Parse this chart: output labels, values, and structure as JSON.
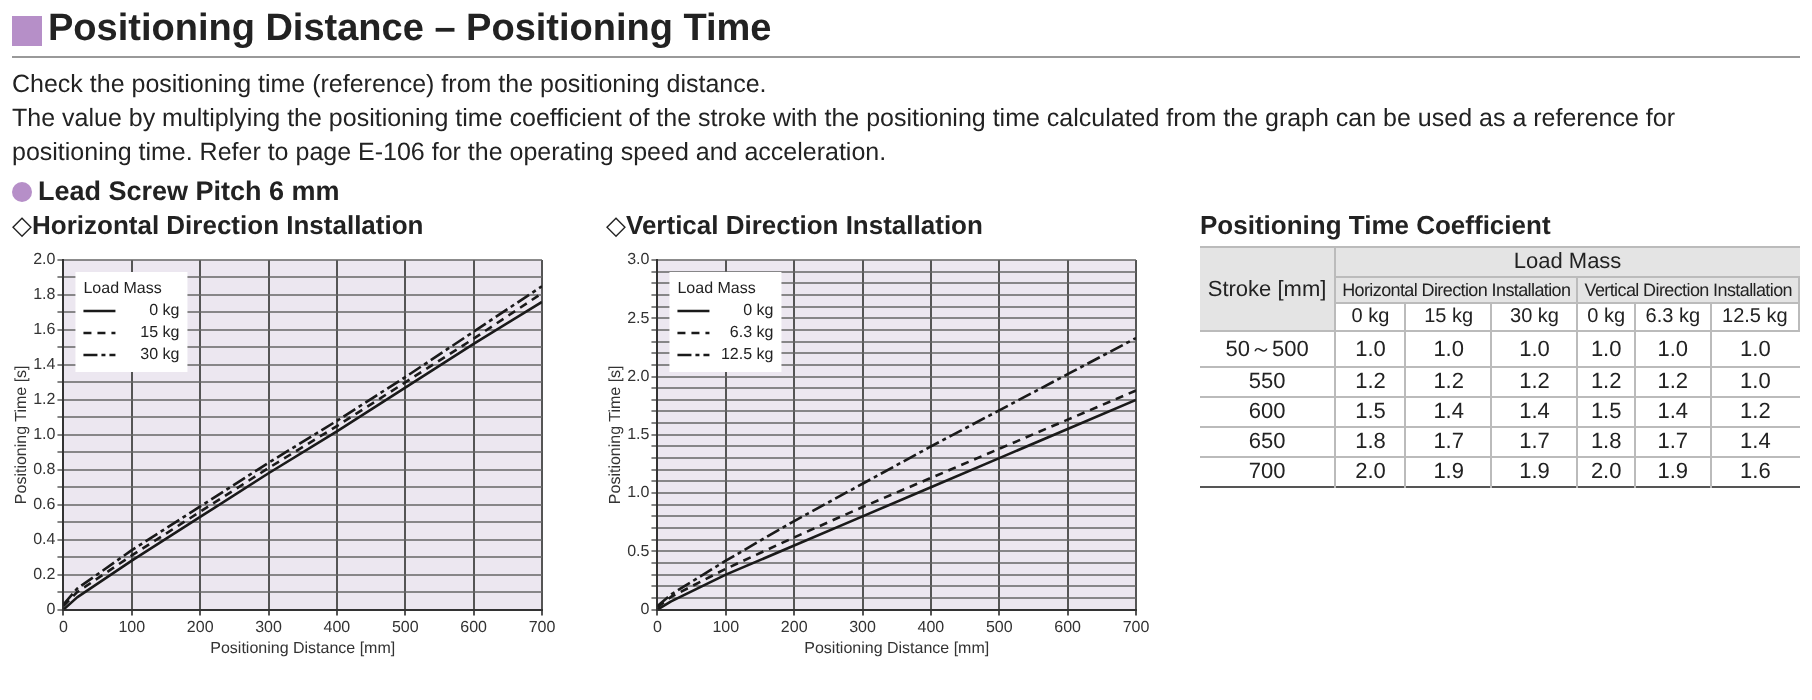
{
  "chart_data": [
    {
      "type": "line",
      "title": "◇Horizontal Direction Installation",
      "annotations": [
        "Positioning Distance – Positioning Time",
        "Check the positioning time (reference) from the positioning distance.",
        "The value by multiplying the positioning time coefficient of the stroke with the positioning time calculated from the graph can be used as a reference for positioning time. Refer to page E-106 for the operating speed and acceleration.",
        "Lead Screw Pitch 6 mm"
      ],
      "xlabel": "Positioning Distance [mm]",
      "ylabel": "Positioning Time [s]",
      "legend_title": "Load Mass",
      "legend": "top left",
      "grid": true,
      "xlim": [
        0,
        700
      ],
      "xticks": [
        0,
        100,
        200,
        300,
        400,
        500,
        600,
        700
      ],
      "ylim": [
        0,
        2.0
      ],
      "yticks": [
        0,
        {
          "value": 0.1,
          "label": null
        },
        0.2,
        {
          "value": 0.3,
          "label": null
        },
        0.4,
        {
          "value": 0.5,
          "label": null
        },
        0.6,
        {
          "value": 0.7,
          "label": null
        },
        0.8,
        {
          "value": 0.9,
          "label": null
        },
        {
          "value": 1.0,
          "label": "1.0"
        },
        {
          "value": 1.1,
          "label": null
        },
        1.2,
        {
          "value": 1.3,
          "label": null
        },
        1.4,
        {
          "value": 1.5,
          "label": null
        },
        1.6,
        {
          "value": 1.7,
          "label": null
        },
        1.8,
        {
          "value": 1.9,
          "label": null
        },
        {
          "value": 2.0,
          "label": "2.0"
        }
      ],
      "series": [
        {
          "name": "0 kg",
          "color": "#1a1a1a",
          "line_style": "solid",
          "x": [
            0,
            20,
            100,
            200,
            300,
            400,
            500,
            600,
            700
          ],
          "values": [
            0,
            0.07,
            0.28,
            0.53,
            0.78,
            1.02,
            1.27,
            1.52,
            1.76
          ]
        },
        {
          "name": "15 kg",
          "color": "#1a1a1a",
          "line_style": "dashed",
          "x": [
            0,
            20,
            100,
            200,
            300,
            400,
            500,
            600,
            700
          ],
          "values": [
            0.02,
            0.1,
            0.31,
            0.56,
            0.81,
            1.05,
            1.3,
            1.55,
            1.81
          ]
        },
        {
          "name": "30 kg",
          "color": "#1a1a1a",
          "line_style": "dotted",
          "x": [
            0,
            20,
            100,
            200,
            300,
            400,
            500,
            600,
            700
          ],
          "values": [
            0.03,
            0.12,
            0.34,
            0.59,
            0.84,
            1.08,
            1.33,
            1.59,
            1.85
          ]
        }
      ]
    },
    {
      "type": "line",
      "title": "◇Vertical Direction Installation",
      "xlabel": "Positioning Distance [mm]",
      "ylabel": "Positioning Time [s]",
      "legend_title": "Load Mass",
      "legend": "top left",
      "grid": true,
      "xlim": [
        0,
        700
      ],
      "xticks": [
        0,
        100,
        200,
        300,
        400,
        500,
        600,
        700
      ],
      "ylim": [
        0,
        3.0
      ],
      "yticks": [
        0,
        {
          "value": 0.1,
          "label": null
        },
        {
          "value": 0.2,
          "label": null
        },
        {
          "value": 0.3,
          "label": null
        },
        {
          "value": 0.4,
          "label": null
        },
        0.5,
        {
          "value": 0.6,
          "label": null
        },
        {
          "value": 0.7,
          "label": null
        },
        {
          "value": 0.8,
          "label": null
        },
        {
          "value": 0.9,
          "label": null
        },
        {
          "value": 1.0,
          "label": "1.0"
        },
        {
          "value": 1.1,
          "label": null
        },
        {
          "value": 1.2,
          "label": null
        },
        {
          "value": 1.3,
          "label": null
        },
        {
          "value": 1.4,
          "label": null
        },
        1.5,
        {
          "value": 1.6,
          "label": null
        },
        {
          "value": 1.7,
          "label": null
        },
        {
          "value": 1.8,
          "label": null
        },
        {
          "value": 1.9,
          "label": null
        },
        {
          "value": 2.0,
          "label": "2.0"
        },
        {
          "value": 2.1,
          "label": null
        },
        {
          "value": 2.2,
          "label": null
        },
        {
          "value": 2.3,
          "label": null
        },
        {
          "value": 2.4,
          "label": null
        },
        2.5,
        {
          "value": 2.6,
          "label": null
        },
        {
          "value": 2.7,
          "label": null
        },
        {
          "value": 2.8,
          "label": null
        },
        {
          "value": 2.9,
          "label": null
        },
        {
          "value": 3.0,
          "label": "3.0"
        }
      ],
      "series": [
        {
          "name": "0 kg",
          "color": "#1a1a1a",
          "line_style": "solid",
          "x": [
            0,
            20,
            100,
            200,
            300,
            400,
            500,
            600,
            700
          ],
          "values": [
            0,
            0.07,
            0.3,
            0.55,
            0.8,
            1.05,
            1.3,
            1.55,
            1.8
          ]
        },
        {
          "name": "6.3 kg",
          "color": "#1a1a1a",
          "line_style": "dashed",
          "x": [
            0,
            20,
            100,
            200,
            300,
            400,
            500,
            600,
            700
          ],
          "values": [
            0.02,
            0.11,
            0.35,
            0.62,
            0.88,
            1.13,
            1.38,
            1.63,
            1.88
          ]
        },
        {
          "name": "12.5 kg",
          "color": "#1a1a1a",
          "line_style": "dotted",
          "x": [
            0,
            20,
            100,
            200,
            300,
            400,
            500,
            600,
            700
          ],
          "values": [
            0.03,
            0.13,
            0.42,
            0.76,
            1.08,
            1.4,
            1.71,
            2.02,
            2.33
          ]
        }
      ]
    },
    {
      "type": "heatmap",
      "title": "Positioning Time Coefficient",
      "xlabel": "Load Mass",
      "ylabel": "Stroke [mm]",
      "annotations": [
        "Horizontal Direction Installation",
        "Vertical Direction Installation"
      ],
      "categories": [
        "0 kg",
        "15 kg",
        "30 kg",
        "0 kg",
        "6.3 kg",
        "12.5 kg"
      ],
      "y_categories": [
        "50～500",
        "550",
        "600",
        "650",
        "700"
      ],
      "cells": [
        [
          1.0,
          1.0,
          1.0,
          1.0,
          1.0,
          1.0
        ],
        [
          1.2,
          1.2,
          1.2,
          1.2,
          1.2,
          1.0
        ],
        [
          1.5,
          1.4,
          1.4,
          1.5,
          1.4,
          1.2
        ],
        [
          1.8,
          1.7,
          1.7,
          1.8,
          1.7,
          1.4
        ],
        [
          2.0,
          1.9,
          1.9,
          2.0,
          1.9,
          1.6
        ]
      ],
      "cell_labels": [
        [
          "1.0",
          "1.0",
          "1.0",
          "1.0",
          "1.0",
          "1.0"
        ],
        [
          "1.2",
          "1.2",
          "1.2",
          "1.2",
          "1.2",
          "1.0"
        ],
        [
          "1.5",
          "1.4",
          "1.4",
          "1.5",
          "1.4",
          "1.2"
        ],
        [
          "1.8",
          "1.7",
          "1.7",
          "1.8",
          "1.7",
          "1.4"
        ],
        [
          "2.0",
          "1.9",
          "1.9",
          "2.0",
          "1.9",
          "1.6"
        ]
      ]
    }
  ]
}
